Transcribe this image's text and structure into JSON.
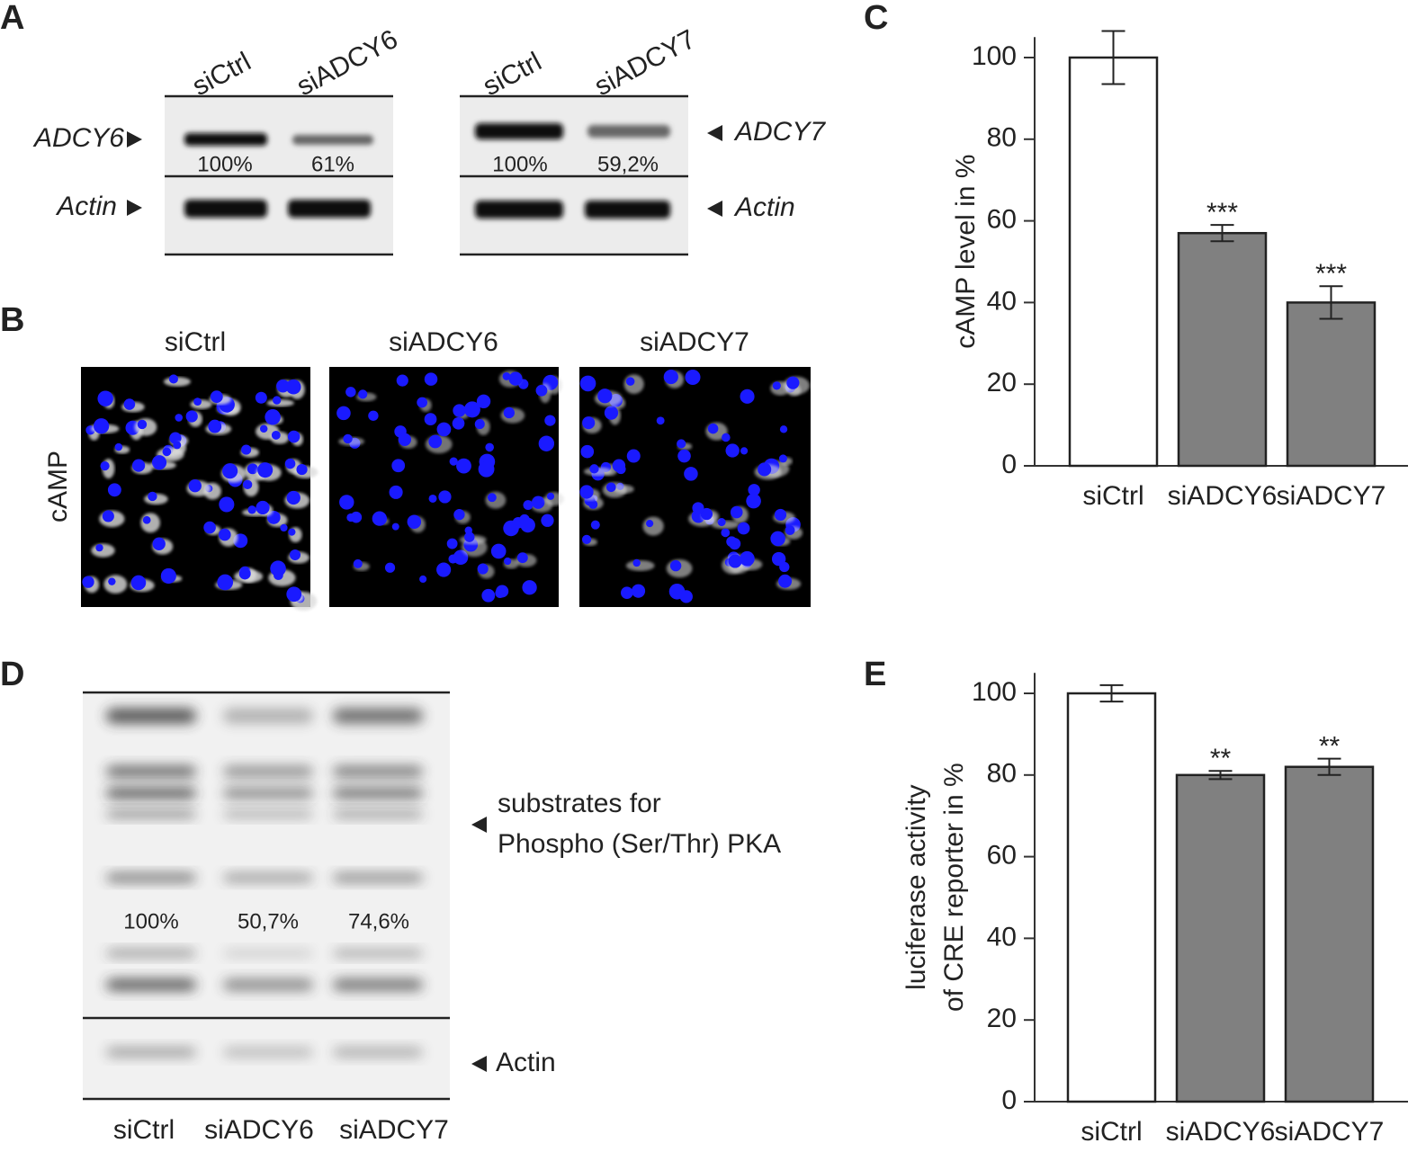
{
  "panel_a": {
    "label": "A",
    "gels": [
      {
        "lanes": [
          "siCtrl",
          "siADCY6"
        ],
        "rows": [
          "ADCY6",
          "Actin"
        ],
        "percentages": [
          "100%",
          "61%"
        ]
      },
      {
        "lanes": [
          "siCtrl",
          "siADCY7"
        ],
        "rows": [
          "ADCY7",
          "Actin"
        ],
        "percentages": [
          "100%",
          "59,2%"
        ]
      }
    ]
  },
  "panel_b": {
    "label": "B",
    "stain": "cAMP",
    "conditions": [
      "siCtrl",
      "siADCY6",
      "siADCY7"
    ]
  },
  "panel_d": {
    "label": "D",
    "lanes": [
      "siCtrl",
      "siADCY6",
      "siADCY7"
    ],
    "percentages": [
      "100%",
      "50,7%",
      "74,6%"
    ],
    "annotations": [
      "substrates for",
      "Phospho (Ser/Thr) PKA",
      "Actin"
    ]
  },
  "chart_data": [
    {
      "type": "bar",
      "label": "C",
      "ylabel": [
        "cAMP level in %"
      ],
      "categories": [
        "siCtrl",
        "siADCY6",
        "siADCY7"
      ],
      "values": [
        100,
        57,
        40
      ],
      "errors": [
        6.5,
        2,
        4
      ],
      "significance": [
        null,
        "***",
        "***"
      ],
      "colors": [
        "#ffffff",
        "#808080",
        "#808080"
      ],
      "ylim": [
        0,
        105
      ],
      "yticks": [
        0,
        20,
        40,
        60,
        80,
        100
      ]
    },
    {
      "type": "bar",
      "label": "E",
      "ylabel": [
        "luciferase activity",
        "of CRE reporter in %"
      ],
      "categories": [
        "siCtrl",
        "siADCY6",
        "siADCY7"
      ],
      "values": [
        100,
        80,
        82
      ],
      "errors": [
        2,
        1,
        2
      ],
      "significance": [
        null,
        "**",
        "**"
      ],
      "colors": [
        "#ffffff",
        "#808080",
        "#808080"
      ],
      "ylim": [
        0,
        105
      ],
      "yticks": [
        0,
        20,
        40,
        60,
        80,
        100
      ]
    }
  ]
}
